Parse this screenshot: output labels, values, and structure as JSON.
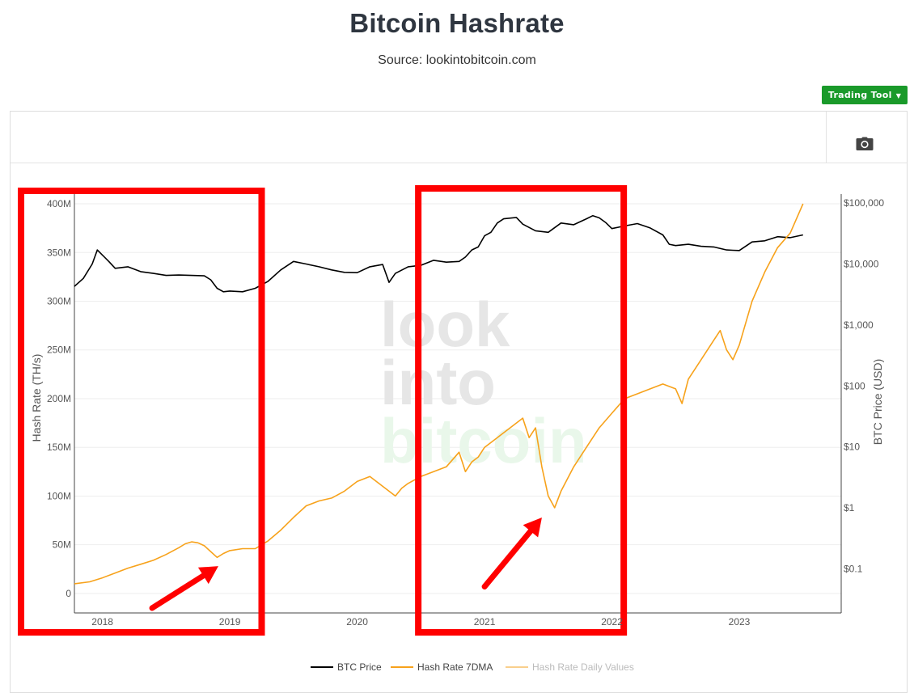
{
  "header": {
    "title": "Bitcoin Hashrate",
    "subtitle": "Source: lookintobitcoin.com"
  },
  "toolbar": {
    "trading_tool_label": "Trading Tool",
    "camera_icon": "camera-icon",
    "dropdown_icon": "caret-down-icon"
  },
  "watermark": {
    "line1": "look",
    "line2": "into",
    "line3": "bitcoin"
  },
  "colors": {
    "btc_price": "#000000",
    "hash_rate_7dma": "#f7a21b",
    "hash_rate_daily": "#f9cf8c",
    "highlight_box": "#ff0000",
    "trading_tool_bg": "#1a9a2a"
  },
  "chart_data": {
    "type": "line",
    "title": "Bitcoin Hashrate",
    "subtitle": "Source: lookintobitcoin.com",
    "ylabel": "Hash Rate (TH/s)",
    "y2label": "BTC Price (USD)",
    "y2_scale": "log",
    "xlim": [
      2017.78,
      2023.8
    ],
    "ylim": [
      -20000000,
      410000000
    ],
    "y2lim": [
      0.019,
      140000
    ],
    "x_ticks": [
      {
        "value": 2018,
        "label": "2018"
      },
      {
        "value": 2019,
        "label": "2019"
      },
      {
        "value": 2020,
        "label": "2020"
      },
      {
        "value": 2021,
        "label": "2021"
      },
      {
        "value": 2022,
        "label": "2022"
      },
      {
        "value": 2023,
        "label": "2023"
      }
    ],
    "y_ticks": [
      {
        "value": 0,
        "label": "0"
      },
      {
        "value": 50000000,
        "label": "50M"
      },
      {
        "value": 100000000,
        "label": "100M"
      },
      {
        "value": 150000000,
        "label": "150M"
      },
      {
        "value": 200000000,
        "label": "200M"
      },
      {
        "value": 250000000,
        "label": "250M"
      },
      {
        "value": 300000000,
        "label": "300M"
      },
      {
        "value": 350000000,
        "label": "350M"
      },
      {
        "value": 400000000,
        "label": "400M"
      }
    ],
    "y2_ticks": [
      {
        "value": 0.1,
        "label": "$0.1"
      },
      {
        "value": 1,
        "label": "$1"
      },
      {
        "value": 10,
        "label": "$10"
      },
      {
        "value": 100,
        "label": "$100"
      },
      {
        "value": 1000,
        "label": "$1,000"
      },
      {
        "value": 10000,
        "label": "$10,000"
      },
      {
        "value": 100000,
        "label": "$100,000"
      }
    ],
    "grid": true,
    "legend_position": "bottom",
    "series": [
      {
        "name": "BTC Price",
        "axis": "y2",
        "x": [
          2017.78,
          2017.85,
          2017.92,
          2017.96,
          2018.0,
          2018.05,
          2018.1,
          2018.2,
          2018.3,
          2018.4,
          2018.5,
          2018.6,
          2018.7,
          2018.8,
          2018.85,
          2018.9,
          2018.95,
          2019.0,
          2019.1,
          2019.2,
          2019.3,
          2019.4,
          2019.5,
          2019.6,
          2019.7,
          2019.8,
          2019.9,
          2020.0,
          2020.1,
          2020.2,
          2020.25,
          2020.3,
          2020.4,
          2020.5,
          2020.6,
          2020.7,
          2020.8,
          2020.85,
          2020.9,
          2020.95,
          2021.0,
          2021.05,
          2021.1,
          2021.15,
          2021.25,
          2021.3,
          2021.4,
          2021.5,
          2021.6,
          2021.7,
          2021.8,
          2021.85,
          2021.9,
          2021.95,
          2022.0,
          2022.1,
          2022.2,
          2022.3,
          2022.4,
          2022.45,
          2022.5,
          2022.6,
          2022.7,
          2022.8,
          2022.9,
          2022.95,
          2023.0,
          2023.1,
          2023.2,
          2023.3,
          2023.4,
          2023.5
        ],
        "y": [
          4300,
          5800,
          10000,
          17000,
          14000,
          11000,
          8500,
          9000,
          7500,
          7000,
          6500,
          6600,
          6500,
          6400,
          5500,
          4000,
          3500,
          3600,
          3500,
          4000,
          5200,
          8000,
          11000,
          10000,
          9000,
          8000,
          7300,
          7200,
          9000,
          9800,
          5000,
          7000,
          9000,
          9500,
          11500,
          10700,
          11000,
          13000,
          17000,
          19000,
          29000,
          33000,
          47000,
          55000,
          58000,
          45000,
          35000,
          33000,
          47000,
          44000,
          55000,
          62000,
          57000,
          48000,
          38000,
          42000,
          46000,
          39000,
          30000,
          21000,
          20000,
          21000,
          19500,
          19000,
          17000,
          16800,
          16600,
          23000,
          24000,
          28000,
          27000,
          30000
        ]
      },
      {
        "name": "Hash Rate 7DMA",
        "axis": "y",
        "x": [
          2017.78,
          2017.9,
          2018.0,
          2018.1,
          2018.2,
          2018.3,
          2018.4,
          2018.5,
          2018.6,
          2018.65,
          2018.7,
          2018.75,
          2018.8,
          2018.85,
          2018.9,
          2018.95,
          2019.0,
          2019.1,
          2019.2,
          2019.3,
          2019.4,
          2019.5,
          2019.6,
          2019.7,
          2019.8,
          2019.9,
          2020.0,
          2020.1,
          2020.2,
          2020.3,
          2020.35,
          2020.4,
          2020.5,
          2020.6,
          2020.7,
          2020.8,
          2020.85,
          2020.9,
          2020.95,
          2021.0,
          2021.1,
          2021.2,
          2021.3,
          2021.35,
          2021.4,
          2021.45,
          2021.5,
          2021.55,
          2021.6,
          2021.7,
          2021.8,
          2021.9,
          2022.0,
          2022.1,
          2022.2,
          2022.3,
          2022.4,
          2022.5,
          2022.55,
          2022.6,
          2022.7,
          2022.8,
          2022.85,
          2022.9,
          2022.95,
          2023.0,
          2023.1,
          2023.2,
          2023.3,
          2023.4,
          2023.5
        ],
        "y": [
          10000000,
          12000000,
          16000000,
          21000000,
          26000000,
          30000000,
          34000000,
          40000000,
          47000000,
          51000000,
          53000000,
          52000000,
          49000000,
          43000000,
          37000000,
          41000000,
          44000000,
          46000000,
          46000000,
          54000000,
          65000000,
          78000000,
          90000000,
          95000000,
          98000000,
          105000000,
          115000000,
          120000000,
          110000000,
          100000000,
          108000000,
          113000000,
          120000000,
          125000000,
          130000000,
          145000000,
          125000000,
          135000000,
          140000000,
          150000000,
          160000000,
          170000000,
          180000000,
          160000000,
          170000000,
          130000000,
          100000000,
          88000000,
          105000000,
          130000000,
          150000000,
          170000000,
          185000000,
          200000000,
          205000000,
          210000000,
          215000000,
          210000000,
          195000000,
          220000000,
          240000000,
          260000000,
          270000000,
          250000000,
          240000000,
          255000000,
          300000000,
          330000000,
          355000000,
          370000000,
          400000000
        ]
      },
      {
        "name": "Hash Rate Daily Values",
        "axis": "y",
        "visible": false,
        "x": [],
        "y": []
      }
    ],
    "annotations": [
      {
        "type": "box",
        "label": "",
        "x_range": [
          2017.78,
          2019.25
        ]
      },
      {
        "type": "box",
        "label": "",
        "x_range": [
          2020.74,
          2022.08
        ]
      },
      {
        "type": "arrow",
        "label": "",
        "x": [
          2018.39,
          2018.91
        ],
        "y": [
          -15000000,
          28000000
        ]
      },
      {
        "type": "arrow",
        "label": "",
        "x": [
          2021.0,
          2021.45
        ],
        "y": [
          7000000,
          78000000
        ]
      }
    ]
  },
  "legend": {
    "items": [
      {
        "label": "BTC Price",
        "color": "#000000"
      },
      {
        "label": "Hash Rate 7DMA",
        "color": "#f7a21b"
      },
      {
        "label": "Hash Rate Daily Values",
        "color": "#f9cf8c"
      }
    ]
  }
}
